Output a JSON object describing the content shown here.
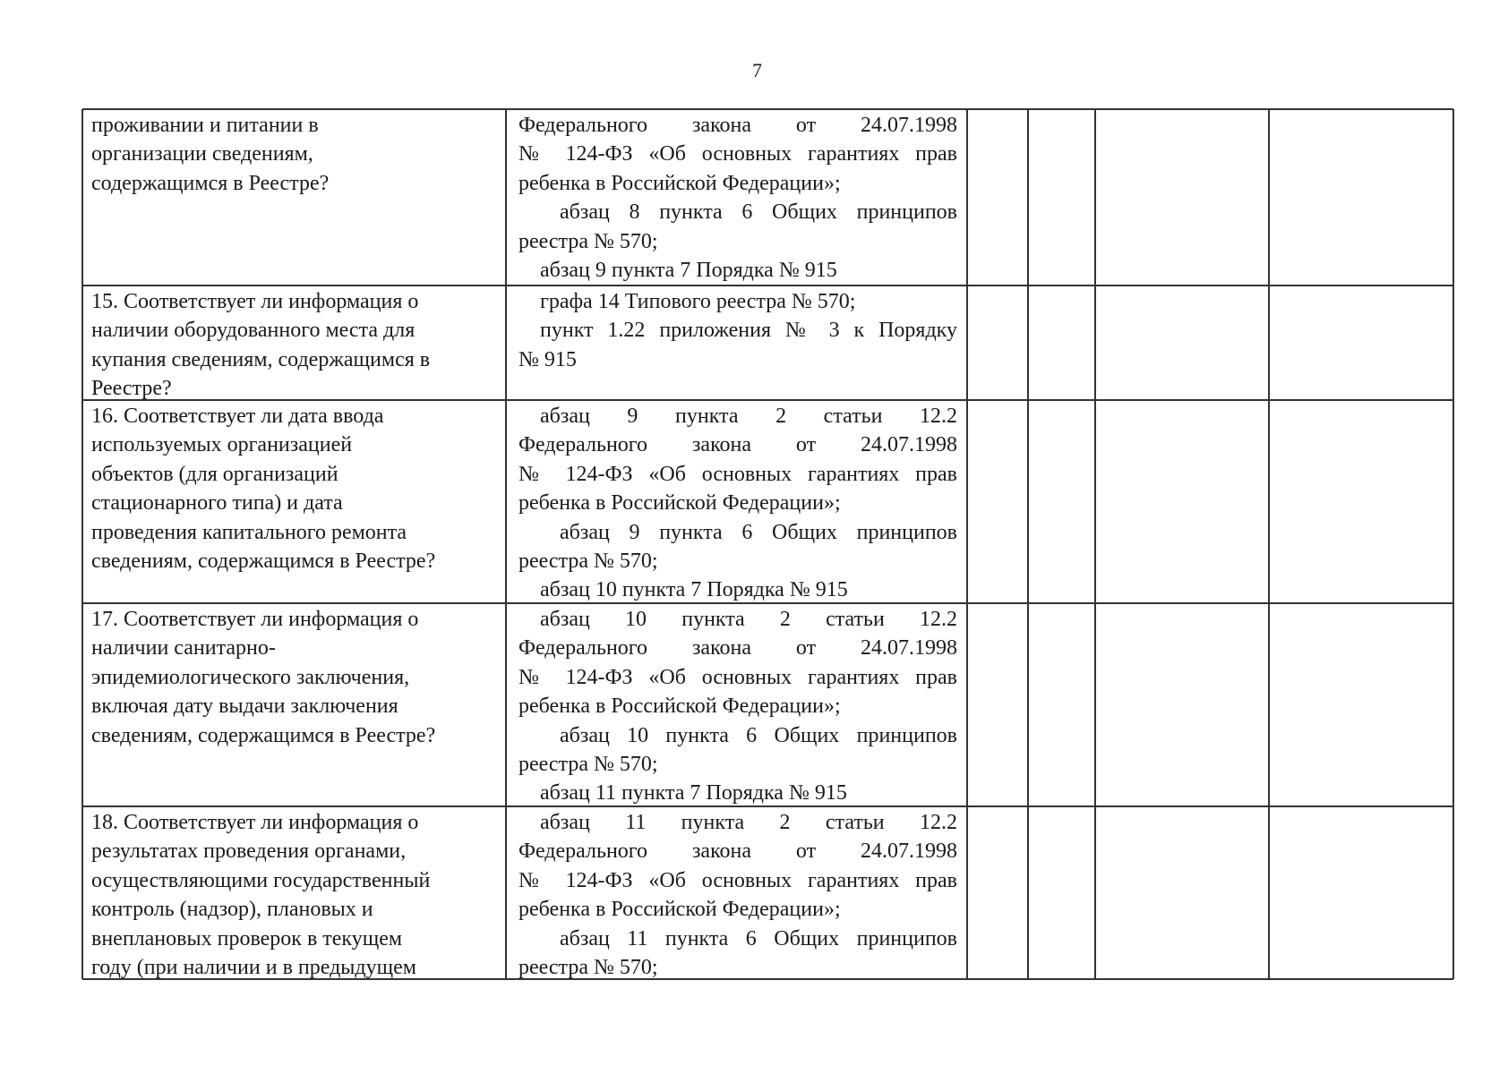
{
  "page_number": "7",
  "rows": [
    {
      "question": [
        "проживании и питании в",
        "организации сведениям,",
        "содержащимся в Реестре?"
      ],
      "basis": [
        {
          "t": "Федерального закона от 24.07.1998",
          "s": "j"
        },
        {
          "t": "№ 124-ФЗ «Об основных гарантиях прав",
          "s": "j"
        },
        {
          "t": "ребенка в Российской Федерации»;",
          "s": ""
        },
        {
          "t": "абзац 8 пункта 6 Общих принципов",
          "s": "j ind2"
        },
        {
          "t": "реестра № 570;",
          "s": ""
        },
        {
          "t": "абзац 9 пункта 7 Порядка № 915",
          "s": "ind"
        }
      ]
    },
    {
      "question": [
        "15. Соответствует ли информация о",
        "наличии оборудованного места для",
        "купания сведениям, содержащимся в",
        "Реестре?"
      ],
      "basis": [
        {
          "t": "графа 14 Типового реестра № 570;",
          "s": "ind"
        },
        {
          "t": "пункт 1.22 приложения № 3 к Порядку",
          "s": "j ind"
        },
        {
          "t": "№ 915",
          "s": ""
        }
      ]
    },
    {
      "question": [
        "16. Соответствует ли дата ввода",
        "используемых организацией",
        "объектов (для организаций",
        "стационарного типа) и дата",
        "проведения капитального ремонта",
        "сведениям, содержащимся в Реестре?"
      ],
      "basis": [
        {
          "t": "абзац 9 пункта 2 статьи 12.2",
          "s": "j ind"
        },
        {
          "t": "Федерального закона от 24.07.1998",
          "s": "j"
        },
        {
          "t": "№ 124-ФЗ «Об основных гарантиях прав",
          "s": "j"
        },
        {
          "t": "ребенка в Российской Федерации»;",
          "s": ""
        },
        {
          "t": "абзац 9 пункта 6 Общих принципов",
          "s": "j ind2"
        },
        {
          "t": "реестра № 570;",
          "s": ""
        },
        {
          "t": "абзац 10 пункта 7 Порядка № 915",
          "s": "ind"
        }
      ]
    },
    {
      "question": [
        "17. Соответствует ли информация о",
        "наличии санитарно-",
        "эпидемиологического заключения,",
        "включая дату выдачи заключения",
        "сведениям, содержащимся в Реестре?"
      ],
      "basis": [
        {
          "t": "абзац 10 пункта 2 статьи 12.2",
          "s": "j ind"
        },
        {
          "t": "Федерального закона от 24.07.1998",
          "s": "j"
        },
        {
          "t": "№ 124-ФЗ «Об основных гарантиях прав",
          "s": "j"
        },
        {
          "t": "ребенка в Российской Федерации»;",
          "s": ""
        },
        {
          "t": "абзац 10 пункта 6 Общих принципов",
          "s": "j ind2"
        },
        {
          "t": "реестра № 570;",
          "s": ""
        },
        {
          "t": "абзац 11 пункта 7 Порядка № 915",
          "s": "ind"
        }
      ]
    },
    {
      "question": [
        "18. Соответствует ли информация о",
        "результатах проведения органами,",
        "осуществляющими государственный",
        "контроль (надзор), плановых и",
        "внеплановых проверок в текущем",
        "году (при наличии и в предыдущем"
      ],
      "basis": [
        {
          "t": "абзац 11 пункта 2 статьи 12.2",
          "s": "j ind"
        },
        {
          "t": "Федерального закона от 24.07.1998",
          "s": "j"
        },
        {
          "t": "№ 124-ФЗ «Об основных гарантиях прав",
          "s": "j"
        },
        {
          "t": "ребенка в Российской Федерации»;",
          "s": ""
        },
        {
          "t": "абзац 11 пункта 6 Общих принципов",
          "s": "j ind2"
        },
        {
          "t": "реестра № 570;",
          "s": ""
        }
      ]
    }
  ]
}
